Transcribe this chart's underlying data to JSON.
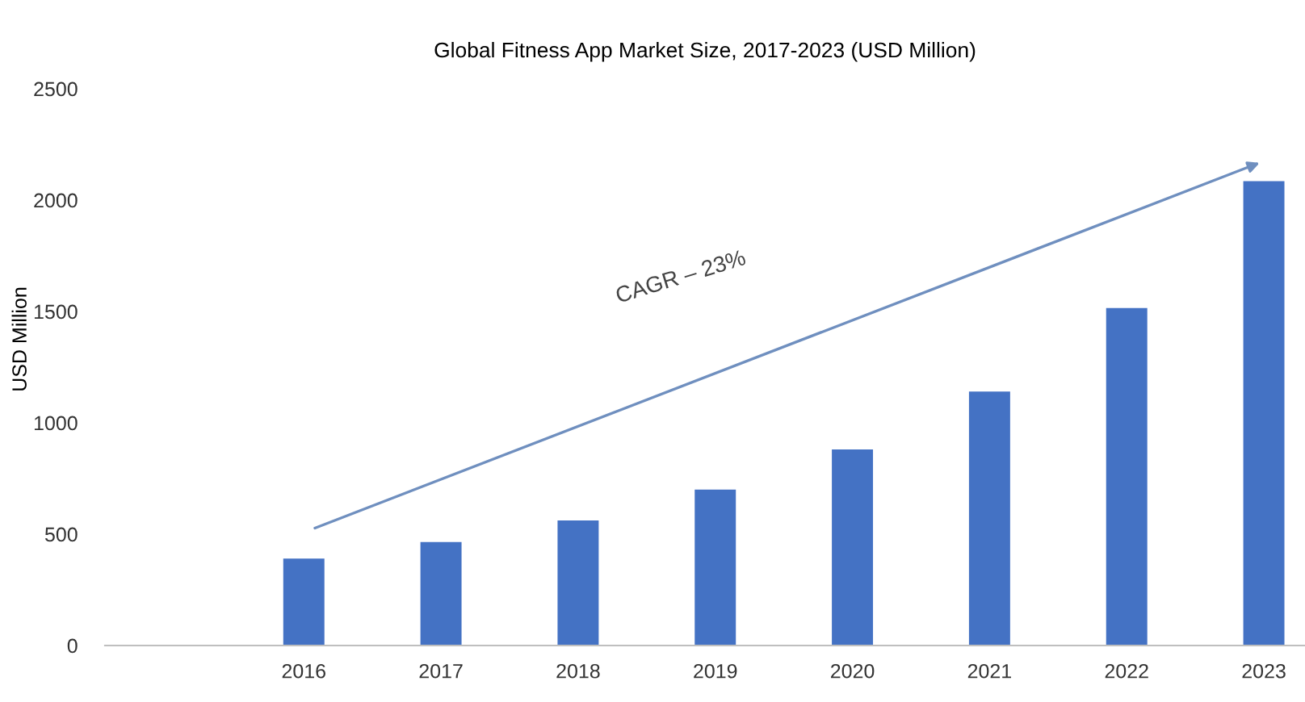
{
  "chart_data": {
    "type": "bar",
    "title": "Global Fitness App Market Size, 2017-2023 (USD Million)",
    "ylabel": "USD Million",
    "categories": [
      null,
      "2016",
      "2017",
      "2018",
      "2019",
      "2020",
      "2021",
      "2022",
      "2023"
    ],
    "values": [
      null,
      390,
      465,
      562,
      700,
      880,
      1140,
      1515,
      2085
    ],
    "color": "#4472c4",
    "ylim": [
      0,
      2500
    ],
    "yticks": [
      0,
      500,
      1000,
      1500,
      2000,
      2500
    ],
    "grid": false,
    "annotations": [
      "CAGR – 23%"
    ]
  }
}
